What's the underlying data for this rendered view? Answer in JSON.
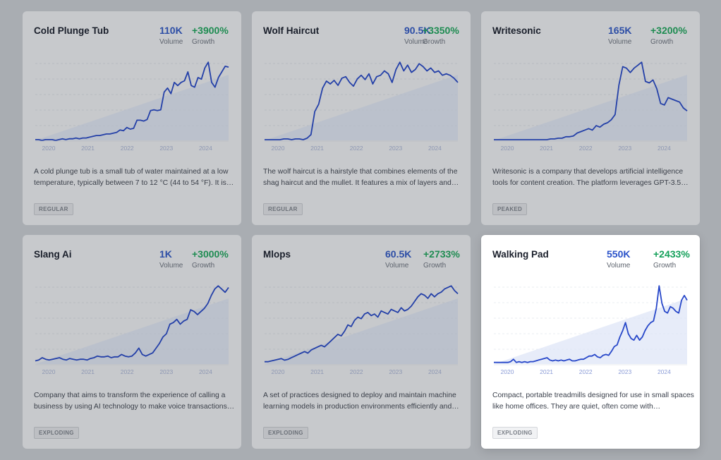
{
  "cards": [
    {
      "title": "Cold Plunge Tub",
      "volume": "110K",
      "volume_label": "Volume",
      "growth": "+3900%",
      "growth_label": "Growth",
      "description": "A cold plunge tub is a small tub of water maintained at a low temperature, typically between 7 to 12 °C (44 to 54 °F). It is…",
      "badge": "REGULAR",
      "active": false,
      "years": [
        "2020",
        "2021",
        "2022",
        "2023",
        "2024"
      ],
      "series": [
        1,
        1,
        0,
        1,
        1,
        1,
        0,
        1,
        2,
        1,
        2,
        2,
        3,
        2,
        3,
        3,
        4,
        5,
        6,
        6,
        7,
        8,
        8,
        9,
        10,
        13,
        12,
        16,
        14,
        15,
        25,
        25,
        24,
        26,
        37,
        38,
        37,
        38,
        60,
        65,
        58,
        72,
        68,
        72,
        74,
        85,
        68,
        66,
        78,
        76,
        90,
        97,
        72,
        66,
        78,
        85,
        92,
        91
      ]
    },
    {
      "title": "Wolf Haircut",
      "volume": "90.5K",
      "volume_label": "Volume",
      "growth": "+3350%",
      "growth_label": "Growth",
      "description": "The wolf haircut is a hairstyle that combines elements of the shag haircut and the mullet. It features a mix of layers and…",
      "badge": "REGULAR",
      "active": false,
      "years": [
        "2020",
        "2021",
        "2022",
        "2023",
        "2024"
      ],
      "series": [
        1,
        1,
        1,
        1,
        1,
        2,
        2,
        1,
        2,
        2,
        1,
        3,
        8,
        40,
        50,
        72,
        82,
        78,
        83,
        76,
        86,
        88,
        80,
        75,
        85,
        90,
        84,
        92,
        78,
        88,
        90,
        96,
        92,
        80,
        98,
        108,
        96,
        104,
        94,
        98,
        106,
        102,
        96,
        100,
        94,
        96,
        90,
        92,
        90,
        86,
        80
      ]
    },
    {
      "title": "Writesonic",
      "volume": "165K",
      "volume_label": "Volume",
      "growth": "+3200%",
      "growth_label": "Growth",
      "description": "Writesonic is a company that develops artificial intelligence tools for content creation. The platform leverages GPT-3.5…",
      "badge": "PEAKED",
      "active": false,
      "years": [
        "2020",
        "2021",
        "2022",
        "2023",
        "2024"
      ],
      "series": [
        1,
        1,
        1,
        1,
        1,
        1,
        1,
        1,
        1,
        1,
        1,
        1,
        1,
        1,
        1,
        2,
        2,
        3,
        3,
        5,
        5,
        6,
        10,
        12,
        14,
        16,
        14,
        20,
        18,
        22,
        24,
        28,
        35,
        75,
        100,
        98,
        92,
        98,
        102,
        106,
        80,
        78,
        82,
        70,
        50,
        48,
        58,
        56,
        54,
        52,
        44,
        40
      ]
    },
    {
      "title": "Slang Ai",
      "volume": "1K",
      "volume_label": "Volume",
      "growth": "+3000%",
      "growth_label": "Growth",
      "description": "Company that aims to transform the experience of calling a business by using AI technology to make voice transactions…",
      "badge": "EXPLODING",
      "active": false,
      "years": [
        "2020",
        "2021",
        "2022",
        "2023",
        "2024"
      ],
      "series": [
        4,
        5,
        8,
        6,
        5,
        6,
        7,
        8,
        6,
        5,
        7,
        6,
        5,
        6,
        6,
        5,
        7,
        8,
        10,
        9,
        9,
        10,
        8,
        9,
        9,
        12,
        10,
        9,
        10,
        14,
        20,
        12,
        10,
        12,
        14,
        20,
        26,
        34,
        38,
        50,
        52,
        56,
        50,
        54,
        56,
        68,
        66,
        62,
        66,
        70,
        76,
        86,
        94,
        98,
        94,
        90,
        96
      ]
    },
    {
      "title": "Mlops",
      "volume": "60.5K",
      "volume_label": "Volume",
      "growth": "+2733%",
      "growth_label": "Growth",
      "description": "A set of practices designed to deploy and maintain machine learning models in production environments efficiently and…",
      "badge": "EXPLODING",
      "active": false,
      "years": [
        "2020",
        "2021",
        "2022",
        "2023",
        "2024"
      ],
      "series": [
        3,
        3,
        4,
        5,
        6,
        7,
        5,
        6,
        8,
        10,
        12,
        14,
        16,
        14,
        18,
        20,
        22,
        24,
        22,
        26,
        30,
        34,
        38,
        36,
        42,
        50,
        48,
        56,
        60,
        58,
        64,
        66,
        62,
        64,
        60,
        68,
        66,
        64,
        70,
        68,
        66,
        72,
        68,
        70,
        74,
        80,
        86,
        90,
        88,
        84,
        90,
        86,
        90,
        92,
        96,
        98,
        100,
        94,
        90
      ]
    },
    {
      "title": "Walking Pad",
      "volume": "550K",
      "volume_label": "Volume",
      "growth": "+2433%",
      "growth_label": "Growth",
      "description": "Compact, portable treadmills designed for use in small spaces like home offices. They are quiet, often come with…",
      "badge": "EXPLODING",
      "active": true,
      "years": [
        "2020",
        "2021",
        "2022",
        "2023",
        "2024"
      ],
      "series": [
        2,
        2,
        2,
        2,
        2,
        2,
        3,
        6,
        2,
        3,
        2,
        3,
        2,
        3,
        3,
        4,
        5,
        6,
        7,
        8,
        5,
        4,
        5,
        4,
        5,
        4,
        5,
        6,
        4,
        4,
        5,
        6,
        6,
        8,
        10,
        10,
        12,
        9,
        8,
        11,
        12,
        11,
        16,
        22,
        24,
        34,
        42,
        52,
        38,
        32,
        30,
        36,
        30,
        34,
        42,
        48,
        52,
        54,
        70,
        98,
        76,
        66,
        64,
        72,
        70,
        66,
        64,
        80,
        86,
        80
      ]
    }
  ]
}
